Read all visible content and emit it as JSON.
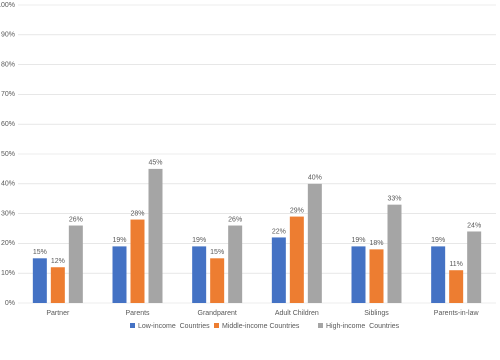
{
  "chart_data": {
    "type": "bar",
    "categories": [
      "Partner",
      "Parents",
      "Grandparent",
      "Adult Children",
      "Siblings",
      "Parents-in-law"
    ],
    "series": [
      {
        "name": "Low-income  Countries",
        "color": "#4472c4",
        "values": [
          15,
          19,
          19,
          22,
          19,
          19
        ],
        "value_labels": [
          "15%",
          "19%",
          "19%",
          "22%",
          "19%",
          "19%"
        ]
      },
      {
        "name": "Middle-income Countries",
        "color": "#ed7d31",
        "values": [
          12,
          28,
          15,
          29,
          18,
          11
        ],
        "value_labels": [
          "12%",
          "28%",
          "15%",
          "29%",
          "18%",
          "11%"
        ]
      },
      {
        "name": "High-income  Countries",
        "color": "#a5a5a5",
        "values": [
          26,
          45,
          26,
          40,
          33,
          24
        ],
        "value_labels": [
          "26%",
          "45%",
          "26%",
          "40%",
          "33%",
          "24%"
        ]
      }
    ],
    "ylim": [
      0,
      100
    ],
    "yticks": [
      {
        "value": 0,
        "label": "0%"
      },
      {
        "value": 10,
        "label": "10%"
      },
      {
        "value": 20,
        "label": "20%"
      },
      {
        "value": 30,
        "label": "30%"
      },
      {
        "value": 40,
        "label": "40%"
      },
      {
        "value": 50,
        "label": "50%"
      },
      {
        "value": 60,
        "label": "60%"
      },
      {
        "value": 70,
        "label": "70%"
      },
      {
        "value": 80,
        "label": "80%"
      },
      {
        "value": 90,
        "label": "90%"
      },
      {
        "value": 100,
        "label": "100%"
      }
    ],
    "grid": true
  }
}
